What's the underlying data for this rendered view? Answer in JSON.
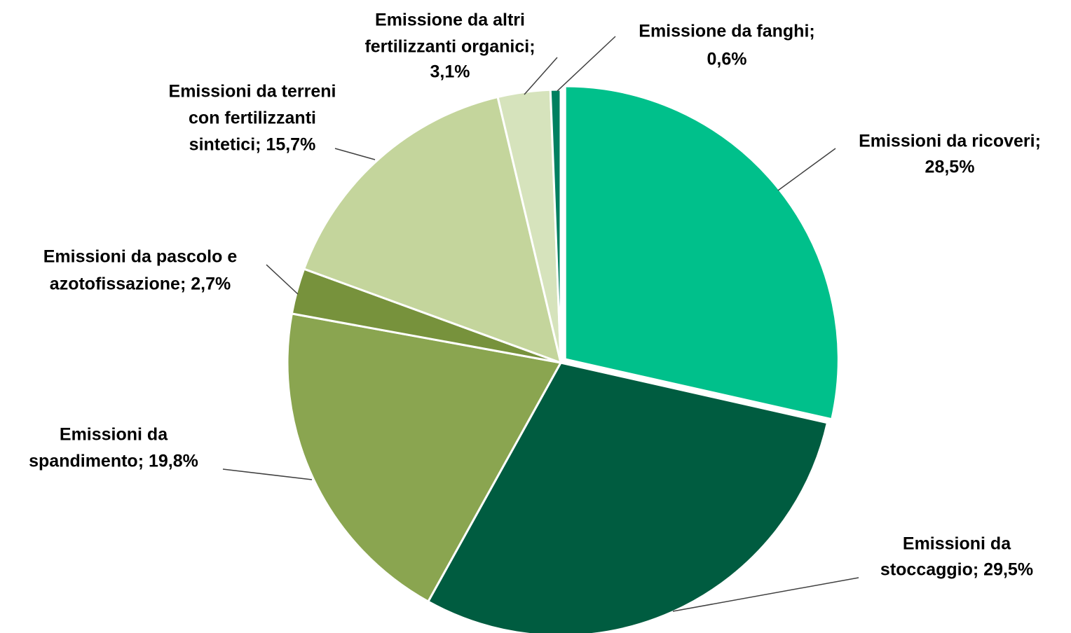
{
  "chart_data": {
    "type": "pie",
    "values": [
      28.5,
      29.5,
      19.8,
      2.7,
      15.7,
      3.1,
      0.6
    ],
    "value_labels": [
      [
        "Emissioni da ricoveri;",
        "28,5%"
      ],
      [
        "Emissioni da",
        "stoccaggio; 29,5%"
      ],
      [
        "Emissioni da",
        "spandimento; 19,8%"
      ],
      [
        "Emissioni da pascolo e",
        "azotofissazione; 2,7%"
      ],
      [
        "Emissioni da terreni",
        "con fertilizzanti",
        "sintetici; 15,7%"
      ],
      [
        "Emissione da altri",
        "fertilizzanti organici;",
        "3,1%"
      ],
      [
        "Emissione da fanghi;",
        "0,6%"
      ]
    ],
    "colors": [
      "#00c08b",
      "#005c40",
      "#8aa550",
      "#77923c",
      "#c4d59c",
      "#d6e3bc",
      "#008060"
    ]
  }
}
